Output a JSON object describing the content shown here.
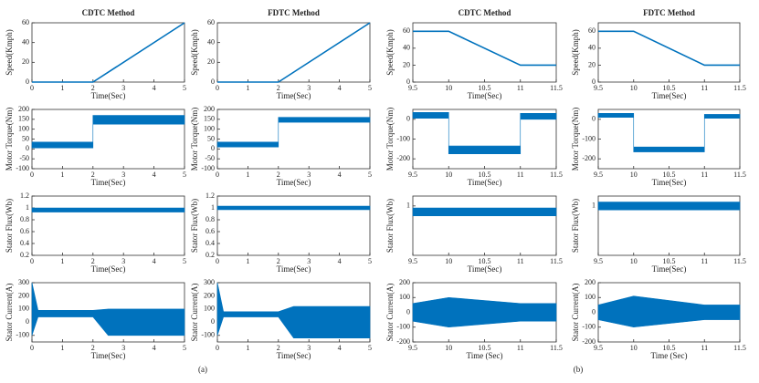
{
  "chart_data": [
    {
      "type": "line",
      "title": "CDTC Method",
      "xlabel": "Time(Sec)",
      "ylabel": "Speed(Kmph)",
      "xlim": [
        0,
        5
      ],
      "xticks": [
        0,
        1,
        2,
        3,
        4,
        5
      ],
      "ylim": [
        0,
        60
      ],
      "yticks": [
        0,
        20,
        40,
        60
      ],
      "series": [
        {
          "color": "#0072bd",
          "x": [
            0,
            2,
            5
          ],
          "values": [
            0,
            0,
            60
          ]
        }
      ]
    },
    {
      "type": "line",
      "title": "FDTC Method",
      "xlabel": "Time(Sec)",
      "ylabel": "Speed(Kmph)",
      "xlim": [
        0,
        5
      ],
      "xticks": [
        0,
        1,
        2,
        3,
        4,
        5
      ],
      "ylim": [
        0,
        60
      ],
      "yticks": [
        0,
        20,
        40,
        60
      ],
      "series": [
        {
          "color": "#0072bd",
          "x": [
            0,
            2,
            5
          ],
          "values": [
            0,
            0,
            60
          ]
        }
      ]
    },
    {
      "type": "line",
      "title": "CDTC Method",
      "xlabel": "Time(Sec)",
      "ylabel": "Speed(Kmph)",
      "xlim": [
        9.5,
        11.5
      ],
      "xticks": [
        9.5,
        10,
        10.5,
        11,
        11.5
      ],
      "ylim": [
        0,
        70
      ],
      "yticks": [
        0,
        20,
        40,
        60
      ],
      "series": [
        {
          "color": "#0072bd",
          "x": [
            9.5,
            10,
            11,
            11.5
          ],
          "values": [
            60,
            60,
            20,
            20
          ]
        }
      ]
    },
    {
      "type": "line",
      "title": "FDTC Method",
      "xlabel": "Time(Sec)",
      "ylabel": "Speed(Kmph)",
      "xlim": [
        9.5,
        11.5
      ],
      "xticks": [
        9.5,
        10,
        10.5,
        11,
        11.5
      ],
      "ylim": [
        0,
        70
      ],
      "yticks": [
        0,
        20,
        40,
        60
      ],
      "series": [
        {
          "color": "#0072bd",
          "x": [
            9.5,
            10,
            11,
            11.5
          ],
          "values": [
            60,
            60,
            20,
            20
          ]
        }
      ]
    },
    {
      "type": "band",
      "xlabel": "Time(Sec)",
      "ylabel": "Motor Torque(Nm)",
      "xlim": [
        0,
        5
      ],
      "xticks": [
        0,
        1,
        2,
        3,
        4,
        5
      ],
      "ylim": [
        -100,
        200
      ],
      "yticks": [
        -100,
        -50,
        0,
        50,
        100,
        150,
        200
      ],
      "series": [
        {
          "color": "#0072bd",
          "x": [
            0,
            2,
            2,
            5
          ],
          "lower": [
            5,
            5,
            125,
            125
          ],
          "upper": [
            35,
            35,
            170,
            170
          ]
        }
      ]
    },
    {
      "type": "band",
      "xlabel": "Time(Sec)",
      "ylabel": "Motor Torque(Nm)",
      "xlim": [
        0,
        5
      ],
      "xticks": [
        0,
        1,
        2,
        3,
        4,
        5
      ],
      "ylim": [
        -100,
        200
      ],
      "yticks": [
        -100,
        -50,
        0,
        50,
        100,
        150,
        200
      ],
      "series": [
        {
          "color": "#0072bd",
          "x": [
            0,
            2,
            2,
            5
          ],
          "lower": [
            10,
            10,
            135,
            135
          ],
          "upper": [
            35,
            35,
            160,
            160
          ]
        }
      ]
    },
    {
      "type": "band",
      "xlabel": "Time(Sec)",
      "ylabel": "Motor Torque(Nm)",
      "xlim": [
        9.5,
        11.5
      ],
      "xticks": [
        9.5,
        10,
        10.5,
        11,
        11.5
      ],
      "ylim": [
        -250,
        50
      ],
      "yticks": [
        -200,
        -100,
        0
      ],
      "series": [
        {
          "color": "#0072bd",
          "x": [
            9.5,
            10,
            10,
            11,
            11,
            11.5
          ],
          "lower": [
            5,
            5,
            -175,
            -175,
            0,
            0
          ],
          "upper": [
            35,
            35,
            -135,
            -135,
            30,
            30
          ]
        }
      ]
    },
    {
      "type": "band",
      "xlabel": "Time(Sec)",
      "ylabel": "Motor Torque(Nm)",
      "xlim": [
        9.5,
        11.5
      ],
      "xticks": [
        9.5,
        10,
        10.5,
        11,
        11.5
      ],
      "ylim": [
        -250,
        50
      ],
      "yticks": [
        -200,
        -100,
        0
      ],
      "series": [
        {
          "color": "#0072bd",
          "x": [
            9.5,
            10,
            10,
            11,
            11,
            11.5
          ],
          "lower": [
            10,
            10,
            -165,
            -165,
            5,
            5
          ],
          "upper": [
            30,
            30,
            -140,
            -140,
            25,
            25
          ]
        }
      ]
    },
    {
      "type": "band",
      "xlabel": "Time(Sec)",
      "ylabel": "Stator Flux(Wb)",
      "xlim": [
        0,
        5
      ],
      "xticks": [
        0,
        1,
        2,
        3,
        4,
        5
      ],
      "ylim": [
        0.2,
        1.2
      ],
      "yticks": [
        0.2,
        0.4,
        0.6,
        0.8,
        1,
        1.2
      ],
      "series": [
        {
          "color": "#0072bd",
          "x": [
            0,
            5
          ],
          "lower": [
            0.93,
            0.93
          ],
          "upper": [
            1.0,
            1.0
          ]
        }
      ]
    },
    {
      "type": "band",
      "xlabel": "Time(Sec)",
      "ylabel": "Stator Flux(Wb)",
      "xlim": [
        0,
        5
      ],
      "xticks": [
        0,
        1,
        2,
        3,
        4,
        5
      ],
      "ylim": [
        0.2,
        1.2
      ],
      "yticks": [
        0.2,
        0.4,
        0.6,
        0.8,
        1,
        1.2
      ],
      "series": [
        {
          "color": "#0072bd",
          "x": [
            0,
            5
          ],
          "lower": [
            0.97,
            0.97
          ],
          "upper": [
            1.03,
            1.03
          ]
        }
      ]
    },
    {
      "type": "band",
      "xlabel": "Time(Sec)",
      "ylabel": "Stator Flux(Wb)",
      "xlim": [
        9.5,
        11.5
      ],
      "xticks": [
        9.5,
        10,
        10.5,
        11,
        11.5
      ],
      "ylim": [
        0.5,
        1.1
      ],
      "yticks": [
        1
      ],
      "series": [
        {
          "color": "#0072bd",
          "x": [
            9.5,
            11.5
          ],
          "lower": [
            0.9,
            0.9
          ],
          "upper": [
            0.98,
            0.98
          ]
        }
      ]
    },
    {
      "type": "band",
      "xlabel": "Time(Sec)",
      "ylabel": "Stator Flux(Wb)",
      "xlim": [
        9.5,
        11.5
      ],
      "xticks": [
        9.5,
        10,
        10.5,
        11,
        11.5
      ],
      "ylim": [
        0.5,
        1.1
      ],
      "yticks": [
        1
      ],
      "series": [
        {
          "color": "#0072bd",
          "x": [
            9.5,
            11.5
          ],
          "lower": [
            0.96,
            0.96
          ],
          "upper": [
            1.04,
            1.04
          ]
        }
      ]
    },
    {
      "type": "band",
      "xlabel": "Time(Sec)",
      "ylabel": "Stator Current(A)",
      "xlim": [
        0,
        5
      ],
      "xticks": [
        0,
        1,
        2,
        3,
        4,
        5
      ],
      "ylim": [
        -150,
        300
      ],
      "yticks": [
        -100,
        0,
        100,
        200,
        300
      ],
      "series": [
        {
          "color": "#0072bd",
          "x": [
            0,
            0.2,
            2,
            2.5,
            5
          ],
          "lower": [
            -100,
            40,
            40,
            -100,
            -100
          ],
          "upper": [
            300,
            90,
            90,
            100,
            100
          ]
        }
      ]
    },
    {
      "type": "band",
      "xlabel": "Time(Sec)",
      "ylabel": "Stator Current(A)",
      "xlim": [
        0,
        5
      ],
      "xticks": [
        0,
        1,
        2,
        3,
        4,
        5
      ],
      "ylim": [
        -150,
        300
      ],
      "yticks": [
        -100,
        0,
        100,
        200,
        300
      ],
      "series": [
        {
          "color": "#0072bd",
          "x": [
            0,
            0.2,
            2,
            2.5,
            5
          ],
          "lower": [
            -100,
            40,
            40,
            -120,
            -120
          ],
          "upper": [
            300,
            80,
            80,
            120,
            120
          ]
        }
      ]
    },
    {
      "type": "band",
      "xlabel": "Time (Sec)",
      "ylabel": "Stator Current(A)",
      "xlim": [
        9.5,
        11.5
      ],
      "xticks": [
        9.5,
        10,
        10.5,
        11,
        11.5
      ],
      "ylim": [
        -200,
        200
      ],
      "yticks": [
        -200,
        -100,
        0,
        100,
        200
      ],
      "series": [
        {
          "color": "#0072bd",
          "x": [
            9.5,
            10,
            11,
            11.5
          ],
          "lower": [
            -60,
            -100,
            -60,
            -60
          ],
          "upper": [
            60,
            100,
            60,
            60
          ]
        }
      ]
    },
    {
      "type": "band",
      "xlabel": "Time (Sec)",
      "ylabel": "Stator Current(A)",
      "xlim": [
        9.5,
        11.5
      ],
      "xticks": [
        9.5,
        10,
        10.5,
        11,
        11.5
      ],
      "ylim": [
        -200,
        200
      ],
      "yticks": [
        -200,
        -100,
        0,
        100,
        200
      ],
      "series": [
        {
          "color": "#0072bd",
          "x": [
            9.5,
            10,
            11,
            11.5
          ],
          "lower": [
            -50,
            -100,
            -50,
            -50
          ],
          "upper": [
            50,
            110,
            50,
            50
          ]
        }
      ]
    }
  ],
  "panel_labels": [
    "(a)",
    "(b)"
  ]
}
